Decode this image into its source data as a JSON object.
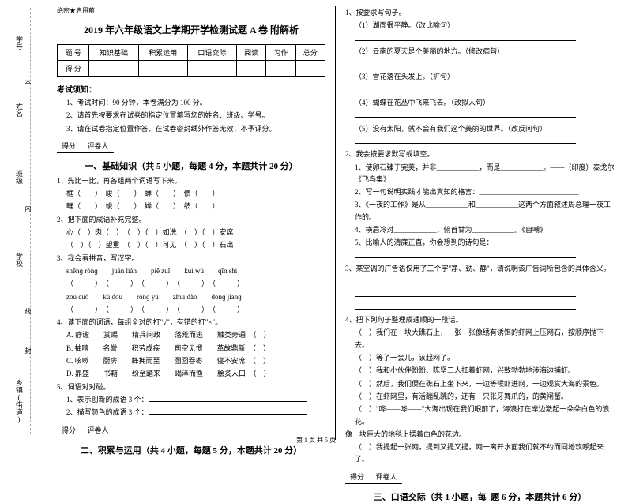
{
  "header_note": "绝密★启用前",
  "title": "2019 年六年级语文上学期开学检测试题 A 卷 附解析",
  "left_margin": {
    "labels": [
      "学号",
      "姓名",
      "班级",
      "学校",
      "乡镇(街道)"
    ],
    "cut_marks": [
      "本",
      "内",
      "线",
      "封"
    ]
  },
  "score_table": {
    "headers": [
      "题 号",
      "知识基础",
      "积累运用",
      "口语交际",
      "阅读",
      "习作",
      "总分"
    ],
    "row_label": "得 分"
  },
  "exam_notice": {
    "title": "考试须知：",
    "items": [
      "1、考试时间：90 分钟，本卷满分为 100 分。",
      "2、请首先按要求在试卷的指定位置填写您的姓名、班级、学号。",
      "3、请在试卷指定位置作答，在试卷密封线外作答无效，不予评分。"
    ]
  },
  "score_box": {
    "score": "得分",
    "reviewer": "评卷人"
  },
  "section1": {
    "title": "一、基础知识（共 5 小题，每题 4 分，本题共计 20 分）",
    "q1": {
      "stem": "1、先比一比，再各组两个词语写下来。",
      "rows": [
        "框（　　）　峻（　　）　蝉（　　）　债（　　）",
        "眶（　　）　竣（　　）　婵（　　）　绩（　　）"
      ]
    },
    "q2": {
      "stem": "2、把下面的成语补充完整。",
      "rows": [
        "心（　）肉（　）　（　）（　）如洗　（　）（　）安席",
        "（　）（　）望重　（　）（　）可见　（　）（　）石出"
      ]
    },
    "q3": {
      "stem": "3、我会看拼音，写汉字。",
      "rows": [
        "shēnɡ rónɡ　　juàn liàn　　piě zuǐ　　kuí wú　　qīn shí",
        "（　　　）　（　　　）　（　　　）　（　　　）　（　　　）",
        "zōu cuò　　kù dōu　　rónɡ yù　　zhuī dào　　dònɡ jiānɡ",
        "（　　　）　（　　　）　（　　　）　（　　　）　（　　　）"
      ]
    },
    "q4": {
      "stem": "4、读下面的词语，每组全对的打\"√\"，有错的打\"×\"。",
      "rows": [
        "A. 静谧　　赏赐　　精兵间政　　落荒而逃　　触类旁通　（　）",
        "B. 抽噎　　名誉　　积劳成疾　　司空见惯　　革故鼎新　（　）",
        "C. 咳嗽　　厨房　　蜂拥而至　　囫囵吞枣　　寝不安席　（　）",
        "D. 鼎盛　　书藉　　纷至踏来　　竭泽而渔　　脍炙人口　（　）"
      ]
    },
    "q5": {
      "stem": "5、词语对对碰。",
      "rows": [
        "1、表示创新的成语 3 个：",
        "2、描写颜色的成语 3 个："
      ]
    }
  },
  "section2": {
    "title": "二、积累与运用（共 4 小题，每题 5 分，本题共计 20 分）"
  },
  "right": {
    "q1": {
      "stem": "1、按要求写句子。",
      "items": [
        "（1）湖面很平静。（改比喻句）",
        "（2）云南的夏天是个美丽的地方。（修改病句）",
        "（3）雪花落在头发上。（扩句）",
        "（4）蝴蝶在花丛中飞来飞去。（改拟人句）",
        "（5）没有太阳，就不会有我们这个美丽的世界。（改反问句）"
      ]
    },
    "q2": {
      "stem": "2、我会按要求默写或填空。",
      "items": [
        "1、使卵石臻于完美，并非____________，而是____________。——（印度）泰戈尔《飞鸟集》",
        "2、写一句说明实践才能出真知的格言：____________________________",
        "3、《一夜的工作》是从____________和____________这两个方面叙述周总理一夜工作的。",
        "4、横眉冷对____________，俯首甘为____________。《自嘲》",
        "5、比喻人的清廉正直，你会想到的诗句是："
      ]
    },
    "q3": {
      "stem": "3、某空调的广告语仅用了三个字\"净、劲、静\"，请说明该广告词所包含的具体含义。"
    },
    "q4": {
      "stem": "4、把下列句子整理成通顺的一段话。",
      "items": [
        "（　）我们在一块大礁石上，一张一张像绣有诱饵的虾网上压网石，按顺序抛下去。",
        "（　）等了一会儿，该起网了。",
        "（　）我和小伙伴盼盼、陈坚三人扛着虾网，兴致勃勃地涉海边捕虾。",
        "（　）然后，我们便在礁石上坐下来，一边等候虾进网，一边观赏大海的景色。",
        "（　）在虾网里，有活蹦乱跳的，还有一只张牙舞爪的，的黄闸蟹。",
        "（　）\"哗——哗——\"大海出现在我们眼前了，海浪打在岸边激起一朵朵白色的浪花。",
        "像一块巨大的地毯上摆着白色的花边。",
        "（　）我提起一张网，提到又提又提，网一离开水面我们就不约而同地欢呼起来了。"
      ]
    }
  },
  "section3": {
    "title": "三、口语交际（共 1 小题，每_题 6 分，本题共计 6 分）"
  },
  "footer": "第 1 页 共 5 页"
}
